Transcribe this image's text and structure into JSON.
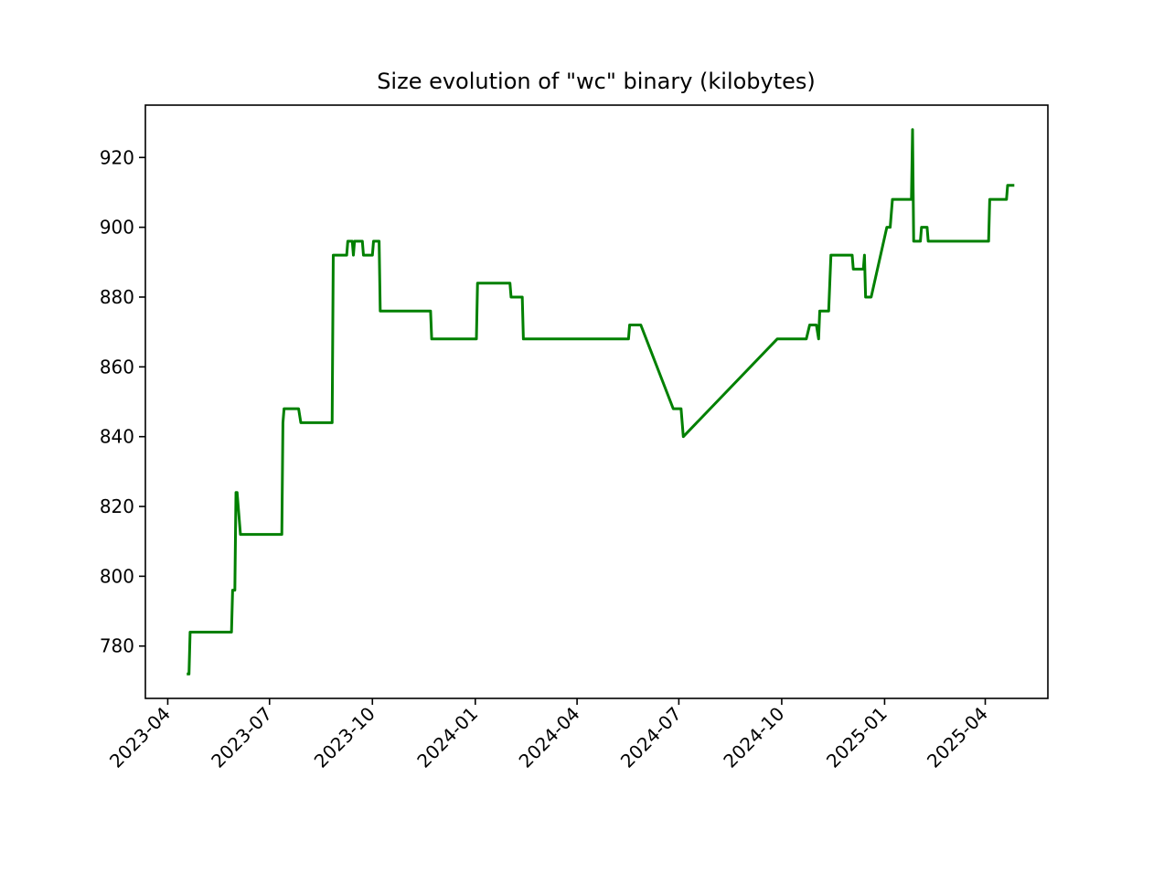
{
  "chart_data": {
    "type": "line",
    "title": "Size evolution of \"wc\" binary (kilobytes)",
    "xlabel": "",
    "ylabel": "",
    "x_scale": "date",
    "xlim": [
      "2023-03-12",
      "2025-05-27"
    ],
    "ylim": [
      765,
      935
    ],
    "x_ticks": [
      "2023-04",
      "2023-07",
      "2023-10",
      "2024-01",
      "2024-04",
      "2024-07",
      "2024-10",
      "2025-01",
      "2025-04"
    ],
    "x_tick_dates": [
      "2023-04-01",
      "2023-07-01",
      "2023-10-01",
      "2024-01-01",
      "2024-04-01",
      "2024-07-01",
      "2024-10-01",
      "2025-01-01",
      "2025-04-01"
    ],
    "y_ticks": [
      780,
      800,
      820,
      840,
      860,
      880,
      900,
      920
    ],
    "grid": false,
    "legend": "none",
    "series": [
      {
        "color": "#008000",
        "points": [
          [
            "2023-04-18",
            772
          ],
          [
            "2023-04-20",
            772
          ],
          [
            "2023-04-21",
            784
          ],
          [
            "2023-05-28",
            784
          ],
          [
            "2023-05-29",
            796
          ],
          [
            "2023-05-31",
            796
          ],
          [
            "2023-06-01",
            824
          ],
          [
            "2023-06-02",
            824
          ],
          [
            "2023-06-05",
            812
          ],
          [
            "2023-07-12",
            812
          ],
          [
            "2023-07-13",
            844
          ],
          [
            "2023-07-14",
            848
          ],
          [
            "2023-07-27",
            848
          ],
          [
            "2023-07-29",
            844
          ],
          [
            "2023-08-26",
            844
          ],
          [
            "2023-08-27",
            892
          ],
          [
            "2023-09-08",
            892
          ],
          [
            "2023-09-09",
            896
          ],
          [
            "2023-09-13",
            896
          ],
          [
            "2023-09-14",
            892
          ],
          [
            "2023-09-15",
            896
          ],
          [
            "2023-09-22",
            896
          ],
          [
            "2023-09-23",
            892
          ],
          [
            "2023-10-01",
            892
          ],
          [
            "2023-10-02",
            896
          ],
          [
            "2023-10-07",
            896
          ],
          [
            "2023-10-08",
            876
          ],
          [
            "2023-11-22",
            876
          ],
          [
            "2023-11-23",
            868
          ],
          [
            "2024-01-02",
            868
          ],
          [
            "2024-01-03",
            884
          ],
          [
            "2024-02-01",
            884
          ],
          [
            "2024-02-02",
            880
          ],
          [
            "2024-02-12",
            880
          ],
          [
            "2024-02-13",
            868
          ],
          [
            "2024-05-17",
            868
          ],
          [
            "2024-05-18",
            872
          ],
          [
            "2024-05-28",
            872
          ],
          [
            "2024-06-26",
            848
          ],
          [
            "2024-07-03",
            848
          ],
          [
            "2024-07-05",
            840
          ],
          [
            "2024-09-27",
            868
          ],
          [
            "2024-10-23",
            868
          ],
          [
            "2024-10-26",
            872
          ],
          [
            "2024-11-01",
            872
          ],
          [
            "2024-11-03",
            868
          ],
          [
            "2024-11-04",
            876
          ],
          [
            "2024-11-12",
            876
          ],
          [
            "2024-11-14",
            892
          ],
          [
            "2024-12-03",
            892
          ],
          [
            "2024-12-04",
            888
          ],
          [
            "2024-12-13",
            888
          ],
          [
            "2024-12-14",
            892
          ],
          [
            "2024-12-15",
            880
          ],
          [
            "2024-12-20",
            880
          ],
          [
            "2025-01-03",
            900
          ],
          [
            "2025-01-06",
            900
          ],
          [
            "2025-01-08",
            908
          ],
          [
            "2025-01-25",
            908
          ],
          [
            "2025-01-26",
            928
          ],
          [
            "2025-01-27",
            896
          ],
          [
            "2025-02-02",
            896
          ],
          [
            "2025-02-03",
            900
          ],
          [
            "2025-02-08",
            900
          ],
          [
            "2025-02-09",
            896
          ],
          [
            "2025-04-04",
            896
          ],
          [
            "2025-04-05",
            908
          ],
          [
            "2025-04-20",
            908
          ],
          [
            "2025-04-21",
            912
          ],
          [
            "2025-04-27",
            912
          ]
        ]
      }
    ]
  }
}
